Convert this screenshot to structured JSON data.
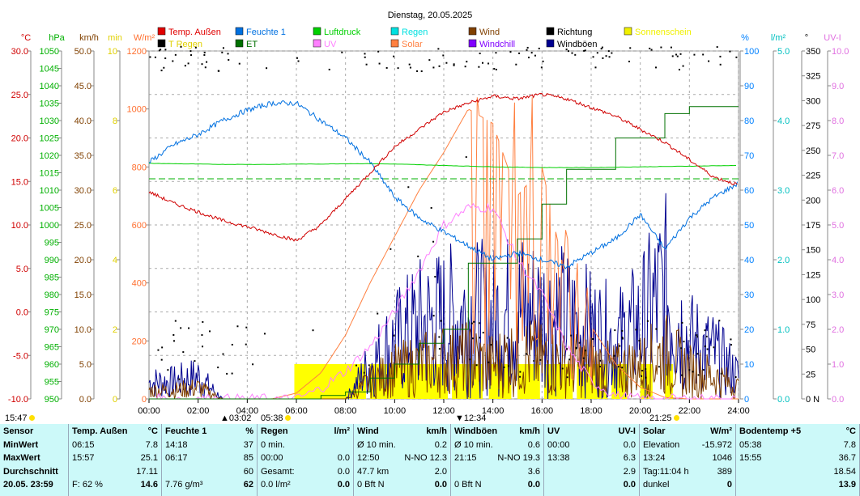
{
  "chart_data": {
    "type": "line",
    "title": "Dienstag, 20.05.2025",
    "legend": [
      {
        "name": "Temp. Außen",
        "color": "#e00000"
      },
      {
        "name": "Feuchte 1",
        "color": "#0070e0"
      },
      {
        "name": "Luftdruck",
        "color": "#00d000"
      },
      {
        "name": "Regen",
        "color": "#00e0e0"
      },
      {
        "name": "Wind",
        "color": "#804000"
      },
      {
        "name": "Richtung",
        "color": "#000000"
      },
      {
        "name": "Sonnenschein",
        "color": "#f0f000"
      },
      {
        "name": "T Regen",
        "color": "#000000"
      },
      {
        "name": "ET",
        "color": "#007000"
      },
      {
        "name": "UV",
        "color": "#ff80ff"
      },
      {
        "name": "Solar",
        "color": "#ff8040"
      },
      {
        "name": "Windchill",
        "color": "#8000ff"
      },
      {
        "name": "Windböen",
        "color": "#000090"
      }
    ],
    "legend_placement": "top",
    "x_ticks": [
      "00:00",
      "02:00",
      "04:00",
      "06:00",
      "08:00",
      "10:00",
      "12:00",
      "14:00",
      "16:00",
      "18:00",
      "20:00",
      "22:00",
      "24:00"
    ],
    "x_range_hours": [
      0,
      24
    ],
    "axes": {
      "left": [
        {
          "unit": "°C",
          "min": -10,
          "max": 30,
          "step": 5,
          "dec": 1,
          "color": "#d00000"
        },
        {
          "unit": "hPa",
          "min": 950,
          "max": 1050,
          "step": 5,
          "dec": 0,
          "color": "#00b000"
        },
        {
          "unit": "km/h",
          "min": 0,
          "max": 50,
          "step": 5,
          "dec": 1,
          "color": "#804000"
        },
        {
          "unit": "min",
          "min": 0,
          "max": 10,
          "step": 2,
          "dec": 0,
          "color": "#e0d000"
        },
        {
          "unit": "W/m²",
          "min": 0,
          "max": 1200,
          "step": 200,
          "dec": 0,
          "color": "#ff7030"
        }
      ],
      "right": [
        {
          "unit": "%",
          "min": 0,
          "max": 100,
          "step": 10,
          "dec": 0,
          "color": "#0080ff"
        },
        {
          "unit": "l/m²",
          "min": 0,
          "max": 5,
          "step": 1,
          "dec": 1,
          "color": "#00c0c0"
        },
        {
          "unit": "°",
          "min": 0,
          "max": 350,
          "step": 25,
          "dec": 0,
          "color": "#000000",
          "zero_label": "N"
        },
        {
          "unit": "UV-I",
          "min": 0,
          "max": 10,
          "step": 1,
          "dec": 1,
          "color": "#e070e0"
        }
      ]
    },
    "grid": true,
    "hours": [
      0,
      1,
      2,
      3,
      4,
      5,
      6,
      7,
      8,
      9,
      10,
      11,
      12,
      13,
      14,
      15,
      16,
      17,
      18,
      19,
      20,
      21,
      22,
      23,
      24
    ],
    "series": [
      {
        "name": "Temp. Außen",
        "axis": "°C",
        "values": [
          13.8,
          12.5,
          11.5,
          10.5,
          9.8,
          9.0,
          8.2,
          10,
          13,
          16,
          19,
          21,
          23,
          24,
          24.8,
          24.5,
          25,
          24.5,
          23.5,
          22.5,
          21,
          19.5,
          17.5,
          15.5,
          14.6
        ]
      },
      {
        "name": "Feuchte 1",
        "axis": "%",
        "values": [
          68,
          73,
          76,
          80,
          83,
          85,
          85,
          80,
          75,
          68,
          58,
          52,
          48,
          44,
          40,
          42,
          40,
          38,
          42,
          46,
          53,
          43,
          52,
          58,
          62
        ]
      },
      {
        "name": "Luftdruck",
        "axis": "hPa",
        "values": [
          1017.7,
          1017.6,
          1017.5,
          1017.4,
          1017.4,
          1017.4,
          1017.5,
          1017.5,
          1017.6,
          1017.6,
          1017.5,
          1017.3,
          1017.1,
          1016.9,
          1016.7,
          1016.6,
          1016.5,
          1016.5,
          1016.5,
          1016.6,
          1016.7,
          1016.8,
          1016.9,
          1017,
          1017.1
        ]
      },
      {
        "name": "ET",
        "axis": "l/m²",
        "values": [
          0,
          0,
          0,
          0,
          0,
          0,
          0,
          0.05,
          0.1,
          0.3,
          0.5,
          0.8,
          1.0,
          1.95,
          1.95,
          2.3,
          2.8,
          3.3,
          3.3,
          3.75,
          3.75,
          4.1,
          4.2,
          4.2,
          4.2
        ]
      },
      {
        "name": "Solar",
        "axis": "W/m²",
        "values": [
          0,
          0,
          0,
          0,
          0,
          0,
          20,
          90,
          220,
          400,
          560,
          720,
          850,
          1000,
          950,
          700,
          800,
          400,
          250,
          120,
          40,
          5,
          0,
          0,
          0
        ]
      },
      {
        "name": "UV",
        "axis": "UV-I",
        "values": [
          0,
          0,
          0,
          0,
          0,
          0,
          0,
          0.3,
          0.8,
          1.5,
          2.5,
          3.7,
          5,
          5.5,
          5.5,
          4,
          3,
          1.5,
          0.5,
          0.1,
          0,
          0,
          0,
          0,
          0
        ]
      },
      {
        "name": "Windböen",
        "axis": "km/h",
        "values": [
          3,
          3,
          4,
          0,
          0,
          0,
          0,
          0,
          0,
          6,
          10,
          13,
          14,
          15,
          14,
          16,
          15,
          14,
          12,
          10,
          13,
          19,
          10,
          8,
          4
        ]
      },
      {
        "name": "Wind",
        "axis": "km/h",
        "values": [
          1.5,
          1.5,
          2,
          0,
          0,
          0,
          0,
          0,
          0,
          3,
          5,
          6,
          7,
          7,
          6,
          8,
          7,
          6,
          6,
          5,
          6,
          8,
          5,
          4,
          2
        ]
      }
    ],
    "sunshine_intervals": [
      [
        "05:55",
        "08:50"
      ],
      [
        "09:00",
        "12:10"
      ],
      [
        "12:20",
        "13:35"
      ],
      [
        "13:50",
        "14:45"
      ],
      [
        "15:00",
        "15:55"
      ],
      [
        "16:05",
        "17:15"
      ],
      [
        "17:25",
        "18:40"
      ],
      [
        "18:50",
        "19:30"
      ],
      [
        "20:00",
        "20:30"
      ],
      [
        "21:00",
        "21:20"
      ]
    ],
    "sunshine_level_min": 1
  },
  "markers": {
    "moon_rise": "15:47",
    "moon_set": "03:02",
    "sunrise": "05:38",
    "culmination": "12:34",
    "sunset": "21:25"
  },
  "table": {
    "cols": [
      {
        "h": [
          "Sensor",
          ""
        ],
        "r": [
          [
            "MinWert",
            ""
          ],
          [
            "MaxWert",
            ""
          ],
          [
            "Durchschnitt",
            ""
          ],
          [
            "20.05. 23:59",
            ""
          ]
        ],
        "bold": true
      },
      {
        "h": [
          "Temp. Außen",
          "°C"
        ],
        "r": [
          [
            "06:15",
            "7.8"
          ],
          [
            "15:57",
            "25.1"
          ],
          [
            "",
            "17.11"
          ],
          [
            "F: 62 %",
            "14.6"
          ]
        ]
      },
      {
        "h": [
          "Feuchte 1",
          "%"
        ],
        "r": [
          [
            "14:18",
            "37"
          ],
          [
            "06:17",
            "85"
          ],
          [
            "",
            "60"
          ],
          [
            "7.76 g/m³",
            "62"
          ]
        ]
      },
      {
        "h": [
          "Regen",
          "l/m²"
        ],
        "r": [
          [
            "0 min.",
            ""
          ],
          [
            "00:00",
            "0.0"
          ],
          [
            "Gesamt:",
            "0.0"
          ],
          [
            "0.0 l/m²",
            "0.0"
          ]
        ]
      },
      {
        "h": [
          "Wind",
          "km/h"
        ],
        "r": [
          [
            "Ø 10 min.",
            "0.2"
          ],
          [
            "12:50",
            "N-NO 12.3"
          ],
          [
            "47.7 km",
            "2.0"
          ],
          [
            "0 Bft N",
            "0.0"
          ]
        ]
      },
      {
        "h": [
          "Windböen",
          "km/h"
        ],
        "r": [
          [
            "Ø 10 min.",
            "0.6"
          ],
          [
            "21:15",
            "N-NO 19.3"
          ],
          [
            "",
            "3.6"
          ],
          [
            "0 Bft N",
            "0.0"
          ]
        ]
      },
      {
        "h": [
          "UV",
          "UV-I"
        ],
        "r": [
          [
            "00:00",
            "0.0"
          ],
          [
            "13:38",
            "6.3"
          ],
          [
            "",
            "2.9"
          ],
          [
            "",
            "0.0"
          ]
        ]
      },
      {
        "h": [
          "Solar",
          "W/m²"
        ],
        "r": [
          [
            "Elevation",
            "-15.972"
          ],
          [
            "13:24",
            "1046"
          ],
          [
            "Tag:11:04 h",
            "389"
          ],
          [
            "dunkel",
            "0"
          ]
        ]
      },
      {
        "h": [
          "Bodentemp +5",
          "°C"
        ],
        "r": [
          [
            "05:38",
            "7.8"
          ],
          [
            "15:55",
            "36.7"
          ],
          [
            "",
            "18.54"
          ],
          [
            "",
            "13.9"
          ]
        ]
      }
    ]
  }
}
